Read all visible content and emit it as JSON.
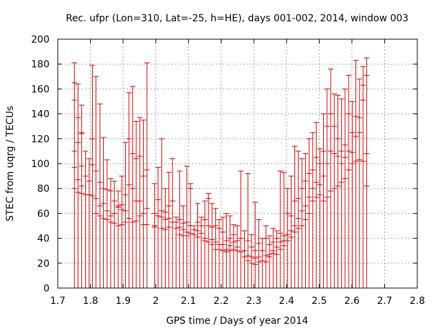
{
  "chart_data": {
    "type": "scatter",
    "title": "Rec. ufpr (Lon=310, Lat=-25, h=HE), days 001-002, 2014, window 003",
    "xlabel": "GPS time / Days of year 2014",
    "ylabel": "STEC from uqrg / TECUs",
    "xlim": [
      1.7,
      2.8
    ],
    "ylim": [
      0,
      200
    ],
    "x_ticks": [
      1.7,
      1.8,
      1.9,
      2.0,
      2.1,
      2.2,
      2.3,
      2.4,
      2.5,
      2.6,
      2.7,
      2.8
    ],
    "x_tick_labels": [
      "1.7",
      "1.8",
      "1.9",
      "2",
      "2.1",
      "2.2",
      "2.3",
      "2.4",
      "2.5",
      "2.6",
      "2.7",
      "2.8"
    ],
    "y_ticks": [
      0,
      20,
      40,
      60,
      80,
      100,
      120,
      140,
      160,
      180,
      200
    ],
    "y_tick_labels": [
      "0",
      "20",
      "40",
      "60",
      "80",
      "100",
      "120",
      "140",
      "160",
      "180",
      "200"
    ],
    "grid": true,
    "series_color": "#cc0000",
    "series": [
      {
        "name": "STEC",
        "points": [
          {
            "x": 1.751,
            "values": [
              181,
              165,
              151,
              110,
              97,
              80
            ]
          },
          {
            "x": 1.762,
            "values": [
              164,
              137,
              117,
              87,
              77
            ]
          },
          {
            "x": 1.773,
            "values": [
              147,
              125,
              124,
              98,
              82,
              76
            ]
          },
          {
            "x": 1.785,
            "values": [
              110,
              90,
              75
            ]
          },
          {
            "x": 1.796,
            "values": [
              104,
              86,
              75
            ]
          },
          {
            "x": 1.806,
            "values": [
              179,
              120,
              99,
              74
            ]
          },
          {
            "x": 1.817,
            "values": [
              170,
              94,
              72,
              60
            ]
          },
          {
            "x": 1.829,
            "values": [
              148,
              85,
              66,
              58
            ]
          },
          {
            "x": 1.84,
            "values": [
              121,
              80,
              68,
              56
            ]
          },
          {
            "x": 1.851,
            "values": [
              103,
              79,
              62,
              55
            ]
          },
          {
            "x": 1.862,
            "values": [
              88,
              78,
              58,
              53
            ]
          },
          {
            "x": 1.873,
            "values": [
              86,
              70,
              60,
              52
            ]
          },
          {
            "x": 1.885,
            "values": [
              78,
              65,
              66,
              50
            ]
          },
          {
            "x": 1.896,
            "values": [
              90,
              67,
              63,
              51
            ]
          },
          {
            "x": 1.907,
            "values": [
              117,
              75,
              62,
              53
            ]
          },
          {
            "x": 1.918,
            "values": [
              157,
              120,
              83,
              56
            ]
          },
          {
            "x": 1.929,
            "values": [
              162,
              108,
              80,
              53
            ]
          },
          {
            "x": 1.94,
            "values": [
              134,
              104,
              70,
              54
            ]
          },
          {
            "x": 1.951,
            "values": [
              137,
              106,
              70,
              58
            ]
          },
          {
            "x": 1.962,
            "values": [
              135,
              90,
              60,
              51
            ]
          },
          {
            "x": 1.973,
            "values": [
              181,
              95,
              64,
              51
            ]
          },
          {
            "x": 1.996,
            "values": [
              84,
              60,
              50,
              49
            ]
          },
          {
            "x": 2.007,
            "values": [
              97,
              71,
              58
            ]
          },
          {
            "x": 2.018,
            "values": [
              120,
              62,
              57,
              48
            ]
          },
          {
            "x": 2.029,
            "values": [
              80,
              61,
              55,
              47
            ]
          },
          {
            "x": 2.04,
            "values": [
              93,
              66,
              56,
              49
            ]
          },
          {
            "x": 2.051,
            "values": [
              104,
              70,
              53
            ]
          },
          {
            "x": 2.062,
            "values": [
              57,
              53,
              48
            ]
          },
          {
            "x": 2.073,
            "values": [
              94,
              55,
              49,
              43
            ]
          },
          {
            "x": 2.084,
            "values": [
              66,
              52,
              47,
              42
            ]
          },
          {
            "x": 2.095,
            "values": [
              98,
              53,
              45,
              42
            ]
          },
          {
            "x": 2.106,
            "values": [
              84,
              80,
              50,
              44
            ]
          },
          {
            "x": 2.117,
            "values": [
              50,
              47,
              43
            ]
          },
          {
            "x": 2.128,
            "values": [
              68,
              53,
              46,
              41
            ]
          },
          {
            "x": 2.139,
            "values": [
              57,
              50,
              44
            ]
          },
          {
            "x": 2.15,
            "values": [
              70,
              55,
              40,
              38
            ]
          },
          {
            "x": 2.161,
            "values": [
              76,
              72,
              50,
              37
            ]
          },
          {
            "x": 2.172,
            "values": [
              68,
              49,
              39,
              35
            ]
          },
          {
            "x": 2.183,
            "values": [
              64,
              50,
              37,
              31
            ]
          },
          {
            "x": 2.194,
            "values": [
              55,
              48,
              35,
              31
            ]
          },
          {
            "x": 2.205,
            "values": [
              57,
              45,
              35,
              30
            ]
          },
          {
            "x": 2.216,
            "values": [
              60,
              38,
              31,
              29
            ]
          },
          {
            "x": 2.227,
            "values": [
              58,
              40,
              34,
              30
            ]
          },
          {
            "x": 2.238,
            "values": [
              51,
              43,
              37,
              31
            ]
          },
          {
            "x": 2.249,
            "values": [
              50,
              38,
              33,
              30
            ]
          },
          {
            "x": 2.26,
            "values": [
              94,
              40,
              29
            ]
          },
          {
            "x": 2.271,
            "values": [
              46,
              30,
              25
            ]
          },
          {
            "x": 2.282,
            "values": [
              92,
              38,
              26,
              22
            ]
          },
          {
            "x": 2.293,
            "values": [
              43,
              33,
              25,
              20
            ]
          },
          {
            "x": 2.304,
            "values": [
              69,
              30,
              24,
              19
            ]
          },
          {
            "x": 2.315,
            "values": [
              55,
              36,
              25,
              21
            ]
          },
          {
            "x": 2.326,
            "values": [
              40,
              30,
              22
            ]
          },
          {
            "x": 2.337,
            "values": [
              50,
              40,
              26,
              21
            ]
          },
          {
            "x": 2.348,
            "values": [
              42,
              35,
              27,
              25
            ]
          },
          {
            "x": 2.359,
            "values": [
              48,
              37,
              30,
              28
            ]
          },
          {
            "x": 2.37,
            "values": [
              46,
              40,
              33,
              27
            ]
          },
          {
            "x": 2.381,
            "values": [
              94,
              44,
              37,
              31
            ]
          },
          {
            "x": 2.392,
            "values": [
              93,
              42,
              38,
              34
            ]
          },
          {
            "x": 2.403,
            "values": [
              80,
              60,
              43,
              38
            ]
          },
          {
            "x": 2.414,
            "values": [
              90,
              58,
              46,
              41
            ]
          },
          {
            "x": 2.425,
            "values": [
              114,
              70,
              50,
              45
            ]
          },
          {
            "x": 2.436,
            "values": [
              110,
              72,
              56,
              48
            ]
          },
          {
            "x": 2.447,
            "values": [
              104,
              80,
              62,
              50
            ]
          },
          {
            "x": 2.458,
            "values": [
              108,
              86,
              66,
              55
            ]
          },
          {
            "x": 2.469,
            "values": [
              120,
              92,
              73,
              60
            ]
          },
          {
            "x": 2.48,
            "values": [
              125,
              95,
              80,
              70
            ]
          },
          {
            "x": 2.491,
            "values": [
              133,
              105,
              85,
              73
            ]
          },
          {
            "x": 2.502,
            "values": [
              112,
              100,
              83,
              75
            ]
          },
          {
            "x": 2.513,
            "values": [
              140,
              110,
              90,
              70
            ]
          },
          {
            "x": 2.524,
            "values": [
              160,
              130,
              100,
              73
            ]
          },
          {
            "x": 2.535,
            "values": [
              176,
              140,
              110,
              78
            ]
          },
          {
            "x": 2.546,
            "values": [
              156,
              130,
              108,
              80
            ]
          },
          {
            "x": 2.557,
            "values": [
              155,
              120,
              106,
              82
            ]
          },
          {
            "x": 2.568,
            "values": [
              152,
              110,
              100,
              85
            ]
          },
          {
            "x": 2.579,
            "values": [
              160,
              115,
              105,
              88
            ]
          },
          {
            "x": 2.59,
            "values": [
              171,
              140,
              110,
              95
            ]
          },
          {
            "x": 2.601,
            "values": [
              150,
              125,
              109,
              100
            ]
          },
          {
            "x": 2.612,
            "values": [
              183,
              138,
              122,
              102
            ]
          },
          {
            "x": 2.623,
            "values": [
              168,
              137,
              125,
              103
            ]
          },
          {
            "x": 2.634,
            "values": [
              178,
              163,
              151,
              102
            ]
          },
          {
            "x": 2.645,
            "values": [
              185,
              171,
              108,
              82
            ]
          }
        ]
      }
    ]
  }
}
